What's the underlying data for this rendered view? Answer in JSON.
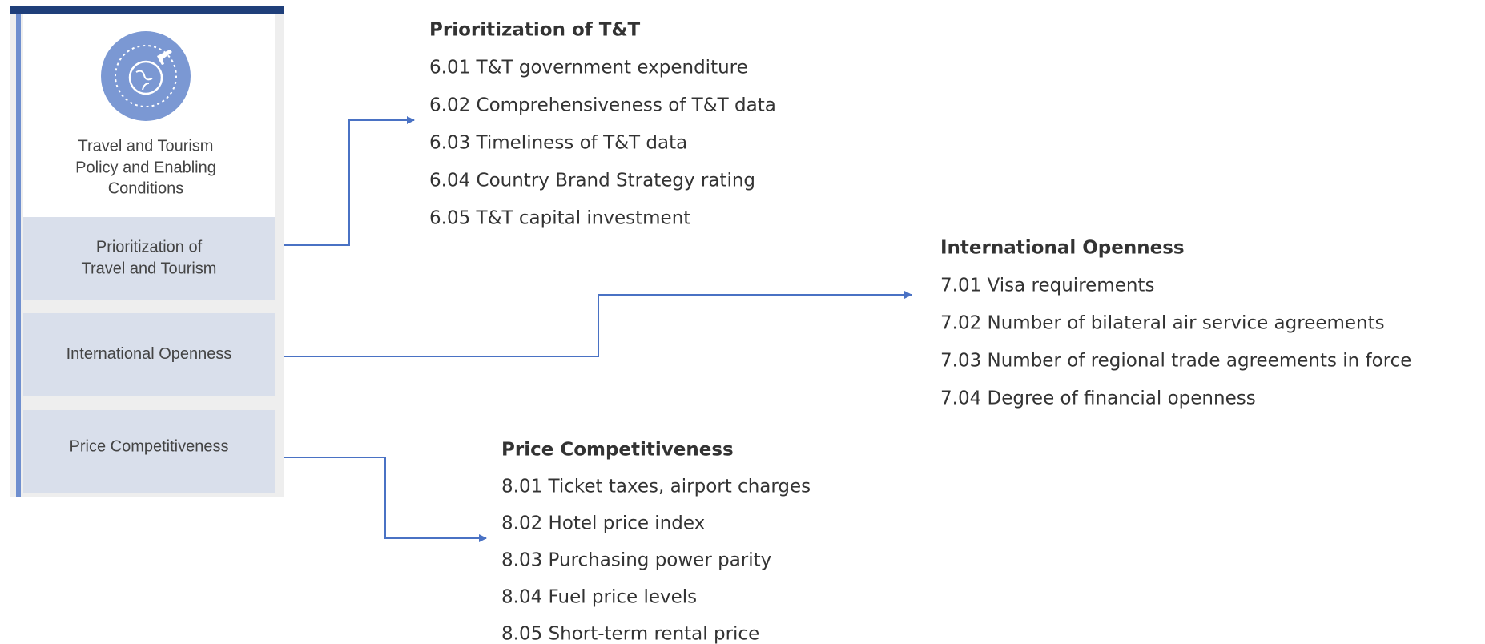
{
  "panel": {
    "title_lines": [
      "Travel and Tourism",
      "Policy and Enabling",
      "Conditions"
    ],
    "pillars": [
      {
        "lines": [
          "Prioritization of",
          "Travel and Tourism"
        ]
      },
      {
        "lines": [
          "International Openness"
        ]
      },
      {
        "lines": [
          "Price Competitiveness"
        ]
      }
    ]
  },
  "groups": [
    {
      "title": "Prioritization of T&T",
      "items": [
        "6.01 T&T government expenditure",
        "6.02 Comprehensiveness of T&T data",
        "6.03 Timeliness of T&T data",
        "6.04 Country Brand Strategy rating",
        "6.05 T&T capital investment"
      ]
    },
    {
      "title": "International Openness",
      "items": [
        "7.01 Visa requirements",
        "7.02 Number of bilateral air service agreements",
        "7.03 Number of regional trade agreements in force",
        "7.04 Degree of financial openness"
      ]
    },
    {
      "title": "Price Competitiveness",
      "items": [
        "8.01 Ticket taxes, airport charges",
        "8.02 Hotel price index",
        "8.03 Purchasing power parity",
        "8.04 Fuel price levels",
        "8.05 Short-term rental price"
      ]
    }
  ]
}
